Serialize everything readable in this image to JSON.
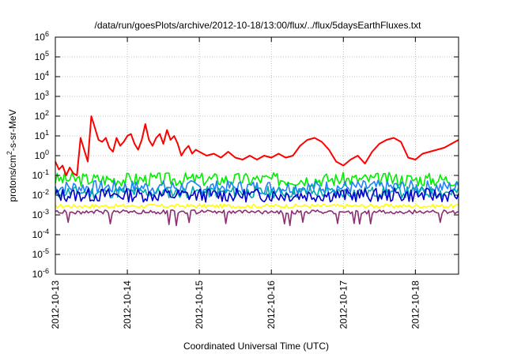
{
  "chart_data": {
    "type": "line",
    "title": "/data/run/goesPlots/archive/2012-10-18/13:00/flux/../flux/5daysEarthFluxes.txt",
    "xlabel": "Coordinated Universal Time (UTC)",
    "ylabel_prefix": "protons/cm",
    "ylabel_sup": "2",
    "ylabel_suffix": "-s-sr-MeV",
    "yscale": "log",
    "ylim_exp": [
      -6,
      6
    ],
    "y_ticks": [
      {
        "base": "10",
        "exp": "-6",
        "value": -6
      },
      {
        "base": "10",
        "exp": "-5",
        "value": -5
      },
      {
        "base": "10",
        "exp": "-4",
        "value": -4
      },
      {
        "base": "10",
        "exp": "-3",
        "value": -3
      },
      {
        "base": "10",
        "exp": "-2",
        "value": -2
      },
      {
        "base": "10",
        "exp": "-1",
        "value": -1
      },
      {
        "base": "10",
        "exp": "0",
        "value": 0
      },
      {
        "base": "10",
        "exp": "1",
        "value": 1
      },
      {
        "base": "10",
        "exp": "2",
        "value": 2
      },
      {
        "base": "10",
        "exp": "3",
        "value": 3
      },
      {
        "base": "10",
        "exp": "4",
        "value": 4
      },
      {
        "base": "10",
        "exp": "5",
        "value": 5
      },
      {
        "base": "10",
        "exp": "6",
        "value": 6
      }
    ],
    "xlim_days": [
      0,
      5.6
    ],
    "x_ticks": [
      {
        "label": "2012-10-13",
        "day": 0
      },
      {
        "label": "2012-10-14",
        "day": 1
      },
      {
        "label": "2012-10-15",
        "day": 2
      },
      {
        "label": "2012-10-16",
        "day": 3
      },
      {
        "label": "2012-10-17",
        "day": 4
      },
      {
        "label": "2012-10-18",
        "day": 5
      }
    ],
    "grid": true,
    "series": [
      {
        "color": "#ff0000",
        "x": [
          0,
          0.05,
          0.1,
          0.15,
          0.2,
          0.25,
          0.3,
          0.35,
          0.4,
          0.45,
          0.5,
          0.55,
          0.6,
          0.65,
          0.7,
          0.75,
          0.8,
          0.85,
          0.9,
          0.95,
          1.0,
          1.05,
          1.1,
          1.15,
          1.2,
          1.25,
          1.3,
          1.35,
          1.4,
          1.45,
          1.5,
          1.55,
          1.6,
          1.65,
          1.7,
          1.75,
          1.8,
          1.85,
          1.9,
          1.95,
          2.0,
          2.1,
          2.2,
          2.3,
          2.4,
          2.5,
          2.6,
          2.7,
          2.8,
          2.9,
          3.0,
          3.1,
          3.2,
          3.3,
          3.4,
          3.5,
          3.6,
          3.7,
          3.8,
          3.9,
          4.0,
          4.1,
          4.2,
          4.3,
          4.4,
          4.5,
          4.6,
          4.7,
          4.8,
          4.9,
          5.0,
          5.1,
          5.2,
          5.3,
          5.4,
          5.5,
          5.6
        ],
        "log_values": [
          -0.3,
          -0.7,
          -0.5,
          -1.0,
          -0.6,
          -0.9,
          -1.0,
          0.9,
          0.3,
          -0.3,
          2.0,
          1.4,
          0.8,
          0.7,
          0.9,
          0.4,
          0.2,
          0.9,
          0.5,
          0.7,
          1.0,
          1.1,
          0.6,
          0.3,
          0.8,
          1.6,
          0.8,
          0.5,
          0.9,
          1.1,
          0.6,
          1.3,
          0.8,
          1.0,
          0.6,
          0.0,
          0.3,
          0.5,
          0.1,
          0.3,
          0.2,
          0.0,
          0.1,
          -0.1,
          0.2,
          -0.1,
          -0.2,
          0.0,
          -0.2,
          0.0,
          -0.1,
          0.1,
          -0.1,
          0.0,
          0.5,
          0.8,
          0.9,
          0.7,
          0.3,
          -0.3,
          -0.5,
          -0.2,
          0.0,
          -0.4,
          0.2,
          0.6,
          0.8,
          0.9,
          0.7,
          -0.1,
          -0.2,
          0.1,
          0.2,
          0.3,
          0.4,
          0.6,
          0.8
        ]
      },
      {
        "color": "#00ee00",
        "base": -1.2,
        "amp": 0.35,
        "seed": 3
      },
      {
        "color": "#2080ff",
        "base": -1.6,
        "amp": 0.35,
        "seed": 7
      },
      {
        "color": "#00aaaa",
        "base": -1.85,
        "amp": 0.3,
        "seed": 11
      },
      {
        "color": "#0000cc",
        "base": -2.0,
        "amp": 0.35,
        "seed": 13
      },
      {
        "color": "#ffff00",
        "base": -2.55,
        "amp": 0.1,
        "seed": 17
      },
      {
        "color": "#8b2f70",
        "base": -2.85,
        "amp": 0.1,
        "seed": 19,
        "dips": true
      }
    ]
  }
}
